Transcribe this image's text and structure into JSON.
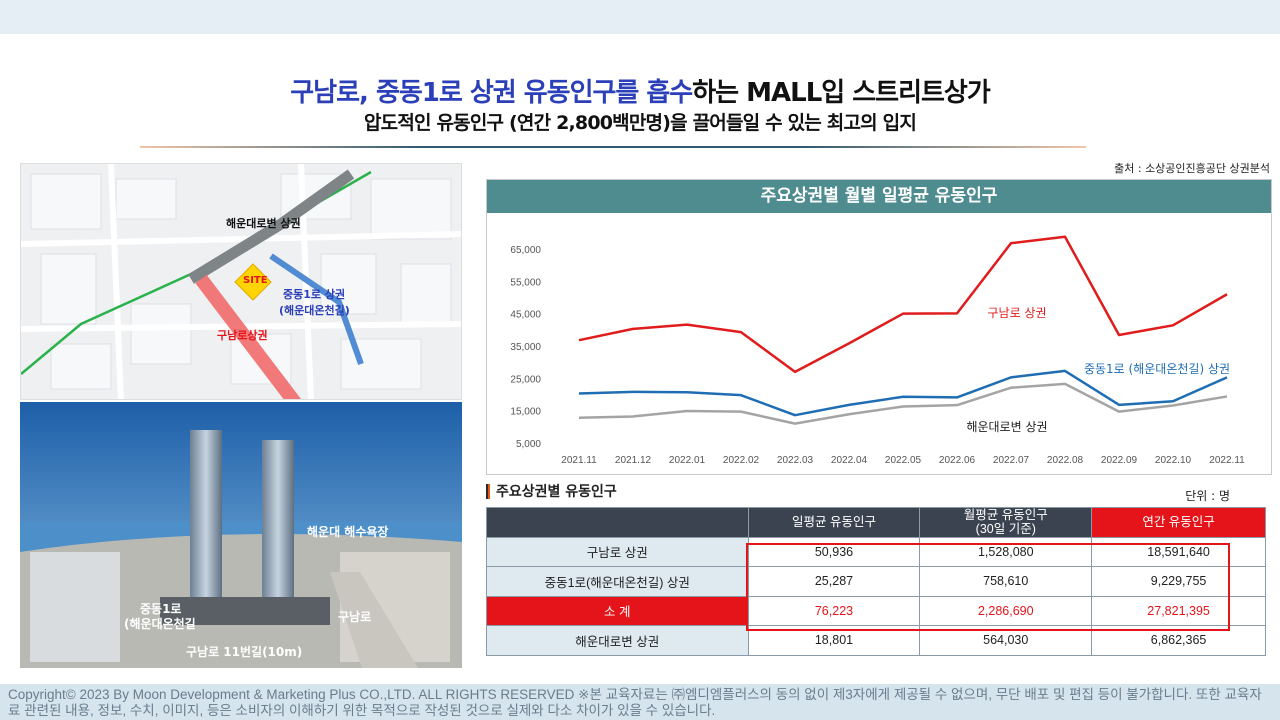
{
  "title": {
    "line1_highlight": "구남로, 중동1로 상권 유동인구를 흡수",
    "line1_rest": "하는 MALL입 스트리트상가",
    "line2": "압도적인 유동인구 (연간 2,800백만명)을 끌어들일 수 있는 최고의 입지"
  },
  "map": {
    "label_haeundae": "해운대로변 상권",
    "label_site": "SITE",
    "label_jungdong_1": "중동1로 상권",
    "label_jungdong_2": "(해운대온천길)",
    "label_gunamro": "구남로상권"
  },
  "photo": {
    "label_beach": "해운대 해수욕장",
    "label_jungdong_1": "중동1로",
    "label_jungdong_2": "(해운대온천길",
    "label_gunamro": "구남로",
    "label_gunamro11": "구남로 11번길(10m)"
  },
  "source": "출처 : 소상공인진흥공단 상권분석",
  "chart_data": {
    "type": "line",
    "title": "주요상권별 월별 일평균 유동인구",
    "categories": [
      "2021.11",
      "2021.12",
      "2022.01",
      "2022.02",
      "2022.03",
      "2022.04",
      "2022.05",
      "2022.06",
      "2022.07",
      "2022.08",
      "2022.09",
      "2022.10",
      "2022.11"
    ],
    "y_ticks": [
      "5,000",
      "15,000",
      "25,000",
      "35,000",
      "45,000",
      "55,000",
      "65,000"
    ],
    "ylim": [
      5000,
      65000
    ],
    "grid": false,
    "series": [
      {
        "name": "구남로 상권",
        "color": "#e01c1c",
        "values": [
          36800,
          40300,
          41600,
          39300,
          27000,
          35800,
          45000,
          45100,
          66800,
          68800,
          38400,
          41400,
          51000
        ]
      },
      {
        "name": "중동1로 (해운대온천길) 상권",
        "color": "#1f6db3",
        "values": [
          20300,
          20800,
          20700,
          19800,
          13600,
          16800,
          19300,
          19100,
          25300,
          27300,
          16800,
          17900,
          25300
        ]
      },
      {
        "name": "해운대로변 상권",
        "color": "#a4a4a4",
        "values": [
          12800,
          13200,
          14900,
          14700,
          11000,
          13900,
          16300,
          16700,
          22100,
          23300,
          14700,
          16600,
          19400
        ]
      }
    ]
  },
  "table": {
    "heading": "주요상권별 유동인구",
    "unit": "단위 : 명",
    "columns": [
      "",
      "일평균 유동인구",
      "월평균 유동인구\n(30일 기준)",
      "연간 유동인구"
    ],
    "rows": [
      {
        "name": "구남로 상권",
        "daily": "50,936",
        "monthly": "1,528,080",
        "annual": "18,591,640"
      },
      {
        "name": "중동1로(해운대온천길) 상권",
        "daily": "25,287",
        "monthly": "758,610",
        "annual": "9,229,755"
      },
      {
        "name": "소 계",
        "daily": "76,223",
        "monthly": "2,286,690",
        "annual": "27,821,395"
      },
      {
        "name": "해운대로변 상권",
        "daily": "18,801",
        "monthly": "564,030",
        "annual": "6,862,365"
      }
    ]
  },
  "footer": "Copyright© 2023 By Moon Development & Marketing Plus CO.,LTD. ALL RIGHTS RESERVED ※본 교육자료는 ㈜엠디엠플러스의 동의 없이 제3자에게 제공될 수 없으며, 무단 배포 및 편집 등이 불가합니다. 또한 교육자료 관련된 내용, 정보, 수치, 이미지, 등은 소비자의 이해하기 위한 목적으로 작성된 것으로 실제와 다소 차이가 있을 수 있습니다."
}
